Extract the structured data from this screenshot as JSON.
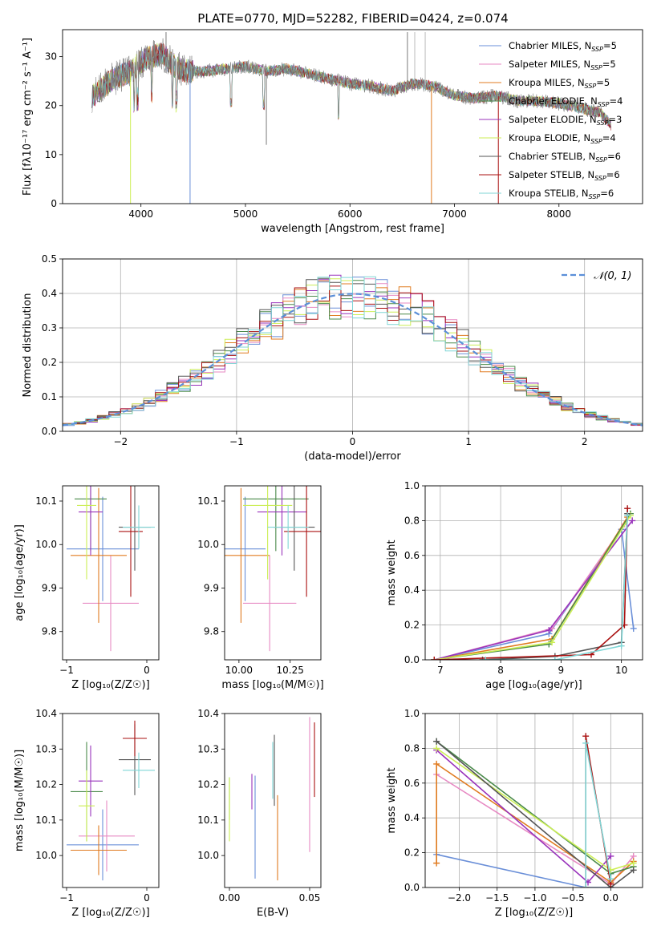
{
  "figure_title": "PLATE=0770, MJD=52282, FIBERID=0424, z=0.074",
  "colors": [
    "#6a8fd8",
    "#e78ac3",
    "#e07b20",
    "#4a8a4a",
    "#9933bb",
    "#ccee55",
    "#555555",
    "#aa1111",
    "#7fd6d6"
  ],
  "chart_data": [
    {
      "id": "spectrum",
      "type": "line",
      "title": "PLATE=0770, MJD=52282, FIBERID=0424, z=0.074",
      "xlabel": "wavelength [Angstrom, rest frame]",
      "ylabel": "Flux [fλ10⁻¹⁷ erg cm⁻² s⁻¹ A⁻¹]",
      "xlim": [
        3250,
        8800
      ],
      "ylim": [
        0,
        35.5
      ],
      "xticks": [
        4000,
        5000,
        6000,
        7000,
        8000
      ],
      "yticks": [
        0,
        10,
        20,
        30
      ],
      "legend_position": "top-right",
      "continuum": {
        "x": [
          3530,
          3600,
          3700,
          3800,
          3900,
          4000,
          4100,
          4200,
          4300,
          4400,
          4600,
          4800,
          5000,
          5200,
          5400,
          5600,
          5800,
          6000,
          6200,
          6400,
          6600,
          6800,
          7000,
          7200,
          7400,
          7600,
          7800,
          8000,
          8200,
          8400,
          8500
        ],
        "y": [
          22,
          23,
          25,
          26,
          27,
          29,
          30,
          30.5,
          28.5,
          27,
          27,
          27.5,
          28,
          27,
          27.5,
          26.5,
          25.5,
          24.5,
          24,
          23,
          24.5,
          24,
          22,
          21.5,
          22,
          21,
          21,
          20.5,
          19.5,
          18.5,
          16
        ]
      },
      "series": [
        {
          "name": "Chabrier MILES, N",
          "sub": "SSP",
          "suffix": "=5"
        },
        {
          "name": "Salpeter MILES, N",
          "sub": "SSP",
          "suffix": "=5"
        },
        {
          "name": "Kroupa MILES, N",
          "sub": "SSP",
          "suffix": "=5"
        },
        {
          "name": "Chabrier ELODIE, N",
          "sub": "SSP",
          "suffix": "=4"
        },
        {
          "name": "Salpeter ELODIE, N",
          "sub": "SSP",
          "suffix": "=3"
        },
        {
          "name": "Kroupa ELODIE, N",
          "sub": "SSP",
          "suffix": "=4"
        },
        {
          "name": "Chabrier STELIB, N",
          "sub": "SSP",
          "suffix": "=6"
        },
        {
          "name": "Salpeter STELIB, N",
          "sub": "SSP",
          "suffix": "=6"
        },
        {
          "name": "Kroupa STELIB, N",
          "sub": "SSP",
          "suffix": "=6"
        }
      ]
    },
    {
      "id": "residuals",
      "type": "histogram",
      "xlabel": "(data-model)/error",
      "ylabel": "Normed distribution",
      "xlim": [
        -2.5,
        2.5
      ],
      "ylim": [
        0,
        0.5
      ],
      "xticks": [
        -2,
        -1,
        0,
        1,
        2
      ],
      "yticks": [
        0.0,
        0.1,
        0.2,
        0.3,
        0.4,
        0.5
      ],
      "grid": true,
      "legend_position": "top-right",
      "reference_curve": {
        "name": "𝒩(0, 1)",
        "mean": 0,
        "sigma": 1
      },
      "bin_width": 0.1
    },
    {
      "id": "age_vs_Z",
      "type": "errorbar",
      "xlabel": "Z [log₁₀(Z/Z☉)]",
      "ylabel": "age  [log₁₀(age/yr)]",
      "xlim": [
        -1.05,
        0.15
      ],
      "ylim": [
        9.735,
        10.135
      ],
      "xticks": [
        -1,
        0
      ],
      "yticks": [
        9.8,
        9.9,
        10.0,
        10.1
      ],
      "points": [
        {
          "x": -0.55,
          "y": 9.99,
          "xerr": 0.45,
          "yerr": 0.12
        },
        {
          "x": -0.45,
          "y": 9.865,
          "xerr": 0.35,
          "yerr": 0.11
        },
        {
          "x": -0.6,
          "y": 9.975,
          "xerr": 0.35,
          "yerr": 0.155
        },
        {
          "x": -0.7,
          "y": 10.105,
          "xerr": 0.2,
          "yerr": 0.12
        },
        {
          "x": -0.7,
          "y": 10.075,
          "xerr": 0.15,
          "yerr": 0.1
        },
        {
          "x": -0.75,
          "y": 10.09,
          "xerr": 0.12,
          "yerr": 0.17
        },
        {
          "x": -0.15,
          "y": 10.04,
          "xerr": 0.2,
          "yerr": 0.1
        },
        {
          "x": -0.2,
          "y": 10.03,
          "xerr": 0.15,
          "yerr": 0.15
        },
        {
          "x": -0.1,
          "y": 10.04,
          "xerr": 0.2,
          "yerr": 0.05
        }
      ]
    },
    {
      "id": "age_vs_mass",
      "type": "errorbar",
      "xlabel": "mass [log₁₀(M/M☉)]",
      "ylabel": "",
      "xlim": [
        9.93,
        10.4
      ],
      "ylim": [
        9.735,
        10.135
      ],
      "xticks": [
        10.0,
        10.25
      ],
      "tick_labels": [
        "10.00",
        "10.25"
      ],
      "yticks": [
        9.8,
        9.9,
        10.0,
        10.1
      ],
      "points": [
        {
          "x": 10.03,
          "y": 9.99,
          "xerr": 0.1,
          "yerr": 0.12
        },
        {
          "x": 10.15,
          "y": 9.865,
          "xerr": 0.13,
          "yerr": 0.11
        },
        {
          "x": 10.01,
          "y": 9.975,
          "xerr": 0.14,
          "yerr": 0.155
        },
        {
          "x": 10.18,
          "y": 10.105,
          "xerr": 0.16,
          "yerr": 0.12
        },
        {
          "x": 10.21,
          "y": 10.075,
          "xerr": 0.12,
          "yerr": 0.1
        },
        {
          "x": 10.14,
          "y": 10.09,
          "xerr": 0.12,
          "yerr": 0.17
        },
        {
          "x": 10.27,
          "y": 10.04,
          "xerr": 0.1,
          "yerr": 0.1
        },
        {
          "x": 10.33,
          "y": 10.03,
          "xerr": 0.11,
          "yerr": 0.15
        },
        {
          "x": 10.24,
          "y": 10.04,
          "xerr": 0.1,
          "yerr": 0.05
        }
      ]
    },
    {
      "id": "weight_vs_age",
      "type": "line",
      "xlabel": "age  [log₁₀(age/yr)]",
      "ylabel": "mass weight",
      "xlim": [
        6.75,
        10.35
      ],
      "ylim": [
        0,
        1
      ],
      "xticks": [
        7,
        8,
        9,
        10
      ],
      "yticks": [
        0.0,
        0.2,
        0.4,
        0.6,
        0.8,
        1.0
      ],
      "grid": true,
      "series": [
        {
          "x": [
            6.9,
            8.8,
            10.0,
            10.2
          ],
          "y": [
            0.0,
            0.15,
            0.75,
            0.18
          ]
        },
        {
          "x": [
            6.9,
            8.85,
            10.05
          ],
          "y": [
            0.0,
            0.18,
            0.78
          ]
        },
        {
          "x": [
            6.9,
            8.85,
            10.1
          ],
          "y": [
            0.0,
            0.12,
            0.82
          ]
        },
        {
          "x": [
            6.9,
            8.8,
            10.15
          ],
          "y": [
            0.0,
            0.09,
            0.84
          ]
        },
        {
          "x": [
            6.9,
            8.8,
            10.18
          ],
          "y": [
            0.0,
            0.17,
            0.8
          ]
        },
        {
          "x": [
            6.9,
            8.85,
            10.15
          ],
          "y": [
            0.0,
            0.1,
            0.83
          ]
        },
        {
          "x": [
            7.7,
            8.9,
            10.0,
            10.1
          ],
          "y": [
            0.0,
            0.02,
            0.1,
            0.84
          ]
        },
        {
          "x": [
            6.9,
            9.5,
            10.05,
            10.1
          ],
          "y": [
            0.0,
            0.03,
            0.2,
            0.87
          ]
        },
        {
          "x": [
            7.75,
            8.9,
            10.0,
            10.1
          ],
          "y": [
            0.0,
            0.0,
            0.08,
            0.83
          ]
        }
      ]
    },
    {
      "id": "mass_vs_Z",
      "type": "errorbar",
      "xlabel": "Z [log₁₀(Z/Z☉)]",
      "ylabel": "mass [log₁₀(M/M☉)]",
      "xlim": [
        -1.05,
        0.15
      ],
      "ylim": [
        9.91,
        10.4
      ],
      "xticks": [
        -1,
        0
      ],
      "yticks": [
        10.0,
        10.1,
        10.2,
        10.3,
        10.4
      ],
      "points": [
        {
          "x": -0.55,
          "y": 10.03,
          "xerr": 0.45,
          "yerr": 0.1
        },
        {
          "x": -0.5,
          "y": 10.055,
          "xerr": 0.35,
          "yerr": 0.1
        },
        {
          "x": -0.6,
          "y": 10.015,
          "xerr": 0.35,
          "yerr": 0.07
        },
        {
          "x": -0.75,
          "y": 10.18,
          "xerr": 0.2,
          "yerr": 0.14
        },
        {
          "x": -0.7,
          "y": 10.21,
          "xerr": 0.15,
          "yerr": 0.1
        },
        {
          "x": -0.75,
          "y": 10.14,
          "xerr": 0.1,
          "yerr": 0.1
        },
        {
          "x": -0.15,
          "y": 10.27,
          "xerr": 0.2,
          "yerr": 0.1
        },
        {
          "x": -0.15,
          "y": 10.33,
          "xerr": 0.15,
          "yerr": 0.05
        },
        {
          "x": -0.1,
          "y": 10.24,
          "xerr": 0.2,
          "yerr": 0.05
        }
      ]
    },
    {
      "id": "mass_vs_ebv",
      "type": "errorbar",
      "xlabel": "E(B-V)",
      "ylabel": "",
      "xlim": [
        -0.003,
        0.057
      ],
      "ylim": [
        9.91,
        10.4
      ],
      "xticks": [
        0.0,
        0.05
      ],
      "tick_labels": [
        "0.00",
        "0.05"
      ],
      "yticks": [
        10.0,
        10.1,
        10.2,
        10.3,
        10.4
      ],
      "points": [
        {
          "x": 0.016,
          "y": 10.08,
          "xerr": 0,
          "yerr": 0.145
        },
        {
          "x": 0.05,
          "y": 10.2,
          "xerr": 0,
          "yerr": 0.19
        },
        {
          "x": 0.03,
          "y": 10.05,
          "xerr": 0,
          "yerr": 0.12
        },
        {
          "x": 0.0,
          "y": 10.16,
          "xerr": 0,
          "yerr": 0.06
        },
        {
          "x": 0.014,
          "y": 10.18,
          "xerr": 0,
          "yerr": 0.05
        },
        {
          "x": 0.0,
          "y": 10.13,
          "xerr": 0,
          "yerr": 0.09
        },
        {
          "x": 0.028,
          "y": 10.24,
          "xerr": 0,
          "yerr": 0.1
        },
        {
          "x": 0.053,
          "y": 10.27,
          "xerr": 0,
          "yerr": 0.105
        },
        {
          "x": 0.027,
          "y": 10.24,
          "xerr": 0,
          "yerr": 0.08
        }
      ]
    },
    {
      "id": "weight_vs_Z",
      "type": "line",
      "xlabel": "Z [log₁₀(Z/Z☉)]",
      "ylabel": "mass weight",
      "xlim": [
        -2.45,
        0.42
      ],
      "ylim": [
        0,
        1
      ],
      "xticks": [
        -2.0,
        -1.5,
        -1.0,
        -0.5,
        0.0
      ],
      "tick_labels": [
        "−2.0",
        "−1.5",
        "−1.0",
        "−0.5",
        "0.0"
      ],
      "yticks": [
        0.0,
        0.2,
        0.4,
        0.6,
        0.8,
        1.0
      ],
      "grid": true,
      "series": [
        {
          "x": [
            -2.3,
            -0.33,
            0.0,
            0.0
          ],
          "y": [
            0.19,
            0.0,
            0.0,
            0.08
          ]
        },
        {
          "x": [
            -2.3,
            0.0,
            0.3
          ],
          "y": [
            0.65,
            0.02,
            0.18
          ]
        },
        {
          "x": [
            -2.3,
            -2.3,
            0.0,
            0.3
          ],
          "y": [
            0.14,
            0.71,
            0.03,
            0.15
          ]
        },
        {
          "x": [
            -2.3,
            0.0,
            0.3
          ],
          "y": [
            0.84,
            0.08,
            0.12
          ]
        },
        {
          "x": [
            -2.3,
            -0.3,
            0.0
          ],
          "y": [
            0.79,
            0.03,
            0.18
          ]
        },
        {
          "x": [
            -2.3,
            0.0,
            0.3
          ],
          "y": [
            0.8,
            0.1,
            0.14
          ]
        },
        {
          "x": [
            -2.3,
            0.0,
            0.3
          ],
          "y": [
            0.84,
            0.0,
            0.1
          ]
        },
        {
          "x": [
            -0.33,
            -0.33,
            0.0
          ],
          "y": [
            0.0,
            0.87,
            0.02
          ]
        },
        {
          "x": [
            -0.33,
            -0.33,
            0.0
          ],
          "y": [
            0.0,
            0.83,
            0.05
          ]
        }
      ]
    }
  ]
}
